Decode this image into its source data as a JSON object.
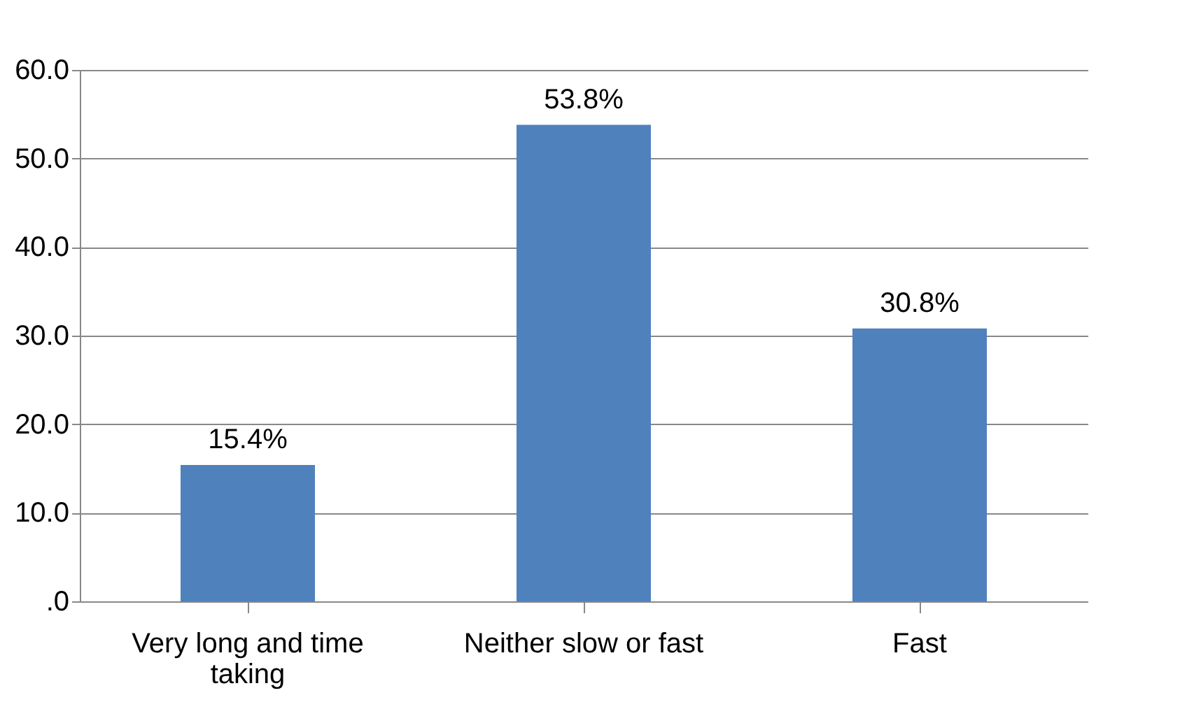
{
  "chart_data": {
    "type": "bar",
    "categories": [
      "Very long and time taking",
      "Neither slow or fast",
      "Fast"
    ],
    "values": [
      15.4,
      53.8,
      30.8
    ],
    "value_labels": [
      "15.4%",
      "53.8%",
      "30.8%"
    ],
    "color": "#4f81bd",
    "ylim": [
      0,
      60
    ],
    "yticks": [
      {
        "value": 0,
        "label": ".0"
      },
      {
        "value": 10,
        "label": "10.0"
      },
      {
        "value": 20,
        "label": "20.0"
      },
      {
        "value": 30,
        "label": "30.0"
      },
      {
        "value": 40,
        "label": "40.0"
      },
      {
        "value": 50,
        "label": "50.0"
      },
      {
        "value": 60,
        "label": "60.0"
      }
    ],
    "grid": "y"
  }
}
